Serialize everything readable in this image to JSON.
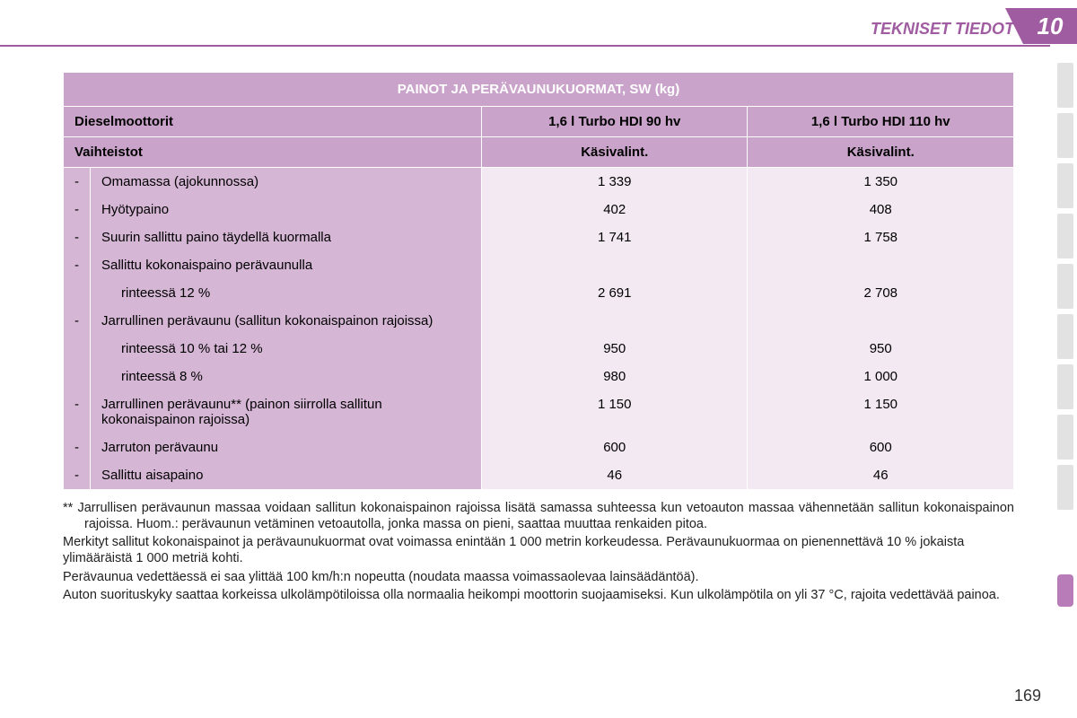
{
  "header": {
    "title": "TEKNISET TIEDOT",
    "chapter": "10",
    "title_color": "#a05ca0",
    "tab_bg": "#a05ca0"
  },
  "table": {
    "title": "PAINOT JA PERÄVAUNUKUORMAT, SW (kg)",
    "header_bg": "#c9a3c9",
    "label_bg": "#d5b6d5",
    "value_bg": "#f3e9f3",
    "columns": {
      "label": "Dieselmoottorit",
      "col1": "1,6 l Turbo HDI 90 hv",
      "col2": "1,6 l Turbo HDI 110 hv"
    },
    "subheader": {
      "label": "Vaihteistot",
      "col1": "Käsivalint.",
      "col2": "Käsivalint."
    },
    "rows": [
      {
        "bullet": "-",
        "label": "Omamassa (ajokunnossa)",
        "col1": "1 339",
        "col2": "1 350"
      },
      {
        "bullet": "-",
        "label": "Hyötypaino",
        "col1": "402",
        "col2": "408"
      },
      {
        "bullet": "-",
        "label": "Suurin sallittu paino täydellä kuormalla",
        "col1": "1 741",
        "col2": "1 758"
      },
      {
        "bullet": "-",
        "label": "Sallittu kokonaispaino perävaunulla",
        "col1": "",
        "col2": ""
      },
      {
        "bullet": "",
        "label": "rinteessä 12 %",
        "indent": true,
        "col1": "2 691",
        "col2": "2 708"
      },
      {
        "bullet": "-",
        "label": "Jarrullinen perävaunu (sallitun kokonaispainon rajoissa)",
        "col1": "",
        "col2": ""
      },
      {
        "bullet": "",
        "label": "rinteessä 10 % tai 12 %",
        "indent": true,
        "col1": "950",
        "col2": "950"
      },
      {
        "bullet": "",
        "label": "rinteessä 8 %",
        "indent": true,
        "col1": "980",
        "col2": "1 000"
      },
      {
        "bullet": "-",
        "label": "Jarrullinen perävaunu** (painon siirrolla sallitun kokonaispainon rajoissa)",
        "col1": "1 150",
        "col2": "1 150"
      },
      {
        "bullet": "-",
        "label": "Jarruton perävaunu",
        "col1": "600",
        "col2": "600"
      },
      {
        "bullet": "-",
        "label": "Sallittu aisapaino",
        "col1": "46",
        "col2": "46"
      }
    ]
  },
  "footnotes": [
    "** Jarrullisen perävaunun massaa voidaan sallitun kokonaispainon rajoissa lisätä samassa suhteessa kun vetoauton massaa vähennetään sallitun kokonaispainon rajoissa. Huom.: perävaunun vetäminen vetoautolla, jonka massa on pieni, saattaa muuttaa renkaiden pitoa.",
    "Merkityt sallitut kokonaispainot ja perävaunukuormat ovat voimassa enintään 1 000 metrin korkeudessa. Perävaunukuormaa on pienennettävä 10 % jokaista ylimääräistä 1 000 metriä kohti.",
    "Perävaunua vedettäessä ei saa ylittää 100 km/h:n nopeutta (noudata maassa voimassaolevaa lainsäädäntöä).",
    "Auton suorituskyky saattaa korkeissa ulkolämpötiloissa olla normaalia heikompi moottorin suojaamiseksi. Kun ulkolämpötila on yli 37 °C, rajoita vedettävää painoa."
  ],
  "page_number": "169",
  "side_tabs": {
    "count": 9,
    "active_index": 10
  }
}
